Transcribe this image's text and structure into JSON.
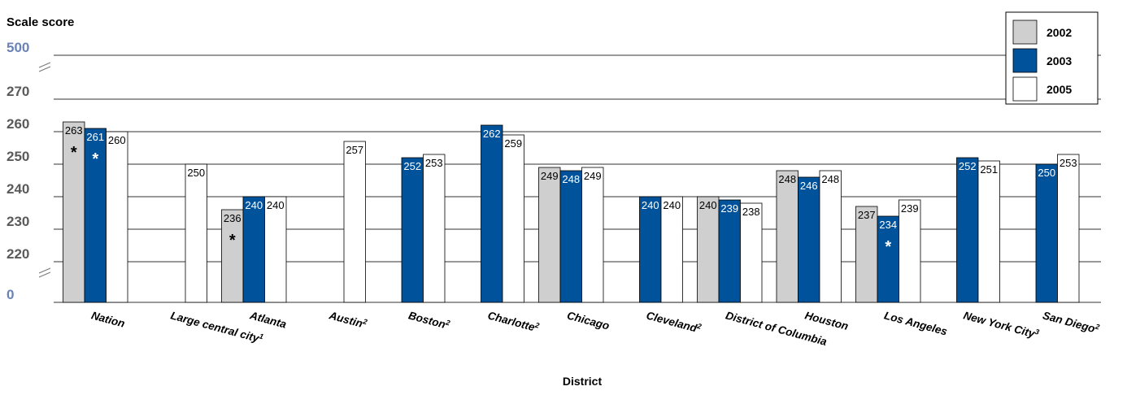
{
  "chart_data": {
    "type": "bar",
    "title": "",
    "ylabel": "Scale score",
    "xlabel": "District",
    "y_ticks_shown": [
      "0",
      "220",
      "230",
      "240",
      "250",
      "260",
      "270",
      "500"
    ],
    "y_axis_breaks": true,
    "ylim": [
      215,
      280
    ],
    "grid": true,
    "legend_position": "top-right",
    "colors": {
      "2002": "#cfcfcf",
      "2003": "#00529b",
      "2005": "#ffffff"
    },
    "categories": [
      {
        "label": "Nation",
        "sup": ""
      },
      {
        "label": "Large central city",
        "sup": "1"
      },
      {
        "label": "Atlanta",
        "sup": ""
      },
      {
        "label": "Austin",
        "sup": "2"
      },
      {
        "label": "Boston",
        "sup": "2"
      },
      {
        "label": "Charlotte",
        "sup": "2"
      },
      {
        "label": "Chicago",
        "sup": ""
      },
      {
        "label": "Cleveland",
        "sup": "2"
      },
      {
        "label": "District of Columbia",
        "sup": ""
      },
      {
        "label": "Houston",
        "sup": ""
      },
      {
        "label": "Los Angeles",
        "sup": ""
      },
      {
        "label": "New York City",
        "sup": "3"
      },
      {
        "label": "San Diego",
        "sup": "2"
      }
    ],
    "series": [
      {
        "name": "2002",
        "values": [
          263,
          null,
          236,
          null,
          null,
          null,
          249,
          null,
          240,
          248,
          237,
          null,
          null
        ],
        "significance_markers": [
          "*",
          null,
          "*",
          null,
          null,
          null,
          null,
          null,
          null,
          null,
          null,
          null,
          null
        ]
      },
      {
        "name": "2003",
        "values": [
          261,
          null,
          240,
          null,
          252,
          262,
          248,
          240,
          239,
          246,
          234,
          252,
          250
        ],
        "significance_markers": [
          "*",
          null,
          null,
          null,
          null,
          null,
          null,
          null,
          null,
          null,
          "*",
          null,
          null
        ]
      },
      {
        "name": "2005",
        "values": [
          260,
          250,
          240,
          257,
          253,
          259,
          249,
          240,
          238,
          248,
          239,
          251,
          253
        ],
        "significance_markers": [
          null,
          null,
          null,
          null,
          null,
          null,
          null,
          null,
          null,
          null,
          null,
          null,
          null
        ]
      }
    ]
  }
}
